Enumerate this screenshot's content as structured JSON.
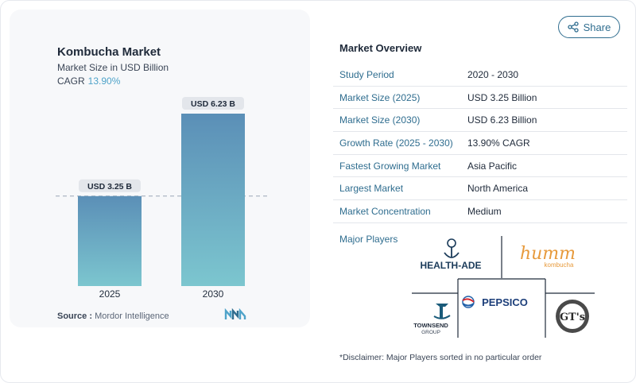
{
  "header": {
    "title": "Kombucha Market",
    "subtitle": "Market Size in USD Billion",
    "cagr_label": "CAGR",
    "cagr_value": "13.90%"
  },
  "share": {
    "label": "Share"
  },
  "chart_data": {
    "type": "bar",
    "categories": [
      "2025",
      "2030"
    ],
    "values": [
      3.25,
      6.23
    ],
    "data_labels": [
      "USD 3.25 B",
      "USD 6.23 B"
    ],
    "title": "Kombucha Market",
    "subtitle": "Market Size in USD Billion",
    "ylim": [
      0,
      6.23
    ],
    "reference_line": 3.25
  },
  "source": {
    "label": "Source :",
    "value": "Mordor Intelligence"
  },
  "overview": {
    "title": "Market Overview",
    "rows": [
      {
        "key": "Study Period",
        "value": "2020 - 2030"
      },
      {
        "key": "Market Size (2025)",
        "value": "USD 3.25 Billion"
      },
      {
        "key": "Market Size (2030)",
        "value": "USD 6.23 Billion"
      },
      {
        "key": "Growth Rate (2025 - 2030)",
        "value": "13.90% CAGR"
      },
      {
        "key": "Fastest Growing Market",
        "value": "Asia Pacific"
      },
      {
        "key": "Largest Market",
        "value": "North America"
      },
      {
        "key": "Market Concentration",
        "value": "Medium"
      }
    ]
  },
  "players": {
    "label": "Major Players",
    "logos": {
      "healthade": "HEALTH-ADE",
      "humm_main": "humm",
      "humm_sub": "kombucha",
      "pepsico": "PEPSICO",
      "townsend_main": "TOWNSEND",
      "townsend_sub": "GROUP",
      "gts": "GT's"
    }
  },
  "disclaimer": "*Disclaimer: Major Players sorted in no particular order",
  "colors": {
    "bar_top": "#5b8fb7",
    "bar_bottom": "#7cc6cf",
    "accent": "#2f6d8f",
    "cagr": "#4fa3c9"
  }
}
